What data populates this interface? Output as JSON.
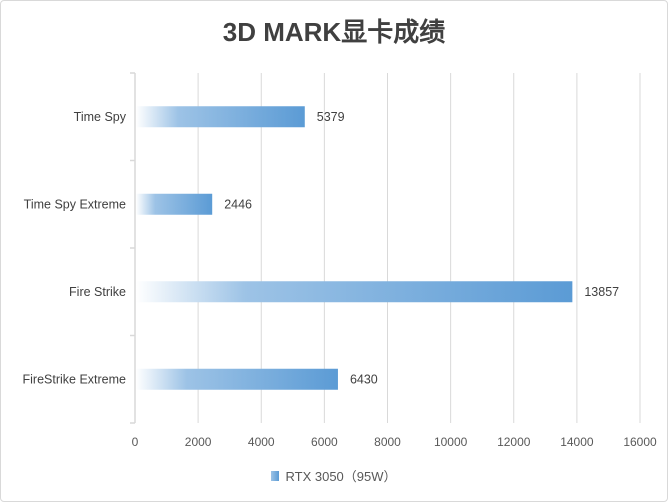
{
  "chart_data": {
    "type": "bar",
    "orientation": "horizontal",
    "title": "3D MARK显卡成绩",
    "categories": [
      "Time Spy",
      "Time Spy Extreme",
      "Fire Strike",
      "FireStrike Extreme"
    ],
    "series": [
      {
        "name": "RTX 3050（95W）",
        "values": [
          5379,
          2446,
          13857,
          6430
        ]
      }
    ],
    "xlim": [
      0,
      16000
    ],
    "xticks": [
      0,
      2000,
      4000,
      6000,
      8000,
      10000,
      12000,
      14000,
      16000
    ],
    "grid": true,
    "legend": "bottom",
    "colors": {
      "bar_start": "#ffffff",
      "bar_mid": "#9dc3e6",
      "bar_end": "#5b9bd5"
    }
  }
}
